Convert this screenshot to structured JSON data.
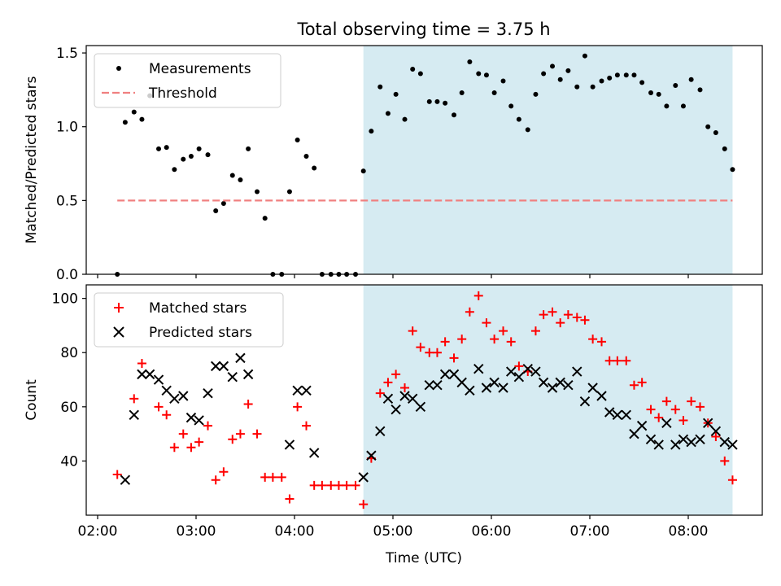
{
  "chart_data": {
    "title": "Total observing time = 3.75 h",
    "xlabel": "Time (UTC)",
    "x_tick_labels": [
      "02:00",
      "03:00",
      "04:00",
      "05:00",
      "06:00",
      "07:00",
      "08:00"
    ],
    "shaded_region": {
      "x0": 4.7,
      "x1": 8.45,
      "color": "#add8e6"
    },
    "panels": [
      {
        "type": "scatter",
        "ylabel": "Matched/Predicted stars",
        "ylim": [
          0,
          1.55
        ],
        "y_ticks": [
          0.0,
          0.5,
          1.0,
          1.5
        ],
        "y_tick_labels": [
          "0.0",
          "0.5",
          "1.0",
          "1.5"
        ],
        "legend": {
          "position": "top-left",
          "entries": [
            "Measurements",
            "Threshold"
          ]
        },
        "series": [
          {
            "name": "Measurements",
            "marker": "dot",
            "color": "#000000",
            "points": [
              [
                2.2,
                0.0
              ],
              [
                2.28,
                1.03
              ],
              [
                2.37,
                1.1
              ],
              [
                2.45,
                1.05
              ],
              [
                2.53,
                1.21
              ],
              [
                2.62,
                0.85
              ],
              [
                2.7,
                0.86
              ],
              [
                2.78,
                0.71
              ],
              [
                2.87,
                0.78
              ],
              [
                2.95,
                0.8
              ],
              [
                3.03,
                0.85
              ],
              [
                3.12,
                0.81
              ],
              [
                3.2,
                0.43
              ],
              [
                3.28,
                0.48
              ],
              [
                3.37,
                0.67
              ],
              [
                3.45,
                0.64
              ],
              [
                3.53,
                0.85
              ],
              [
                3.62,
                0.56
              ],
              [
                3.7,
                0.38
              ],
              [
                3.78,
                0.0
              ],
              [
                3.87,
                0.0
              ],
              [
                3.95,
                0.56
              ],
              [
                4.03,
                0.91
              ],
              [
                4.12,
                0.8
              ],
              [
                4.2,
                0.72
              ],
              [
                4.28,
                0.0
              ],
              [
                4.37,
                0.0
              ],
              [
                4.45,
                0.0
              ],
              [
                4.53,
                0.0
              ],
              [
                4.62,
                0.0
              ],
              [
                4.7,
                0.7
              ],
              [
                4.78,
                0.97
              ],
              [
                4.87,
                1.27
              ],
              [
                4.95,
                1.09
              ],
              [
                5.03,
                1.22
              ],
              [
                5.12,
                1.05
              ],
              [
                5.2,
                1.39
              ],
              [
                5.28,
                1.36
              ],
              [
                5.37,
                1.17
              ],
              [
                5.45,
                1.17
              ],
              [
                5.53,
                1.16
              ],
              [
                5.62,
                1.08
              ],
              [
                5.7,
                1.23
              ],
              [
                5.78,
                1.44
              ],
              [
                5.87,
                1.36
              ],
              [
                5.95,
                1.35
              ],
              [
                6.03,
                1.23
              ],
              [
                6.12,
                1.31
              ],
              [
                6.2,
                1.14
              ],
              [
                6.28,
                1.05
              ],
              [
                6.37,
                0.98
              ],
              [
                6.45,
                1.22
              ],
              [
                6.53,
                1.36
              ],
              [
                6.62,
                1.41
              ],
              [
                6.7,
                1.32
              ],
              [
                6.78,
                1.38
              ],
              [
                6.87,
                1.27
              ],
              [
                6.95,
                1.48
              ],
              [
                7.03,
                1.27
              ],
              [
                7.12,
                1.31
              ],
              [
                7.2,
                1.33
              ],
              [
                7.28,
                1.35
              ],
              [
                7.37,
                1.35
              ],
              [
                7.45,
                1.35
              ],
              [
                7.53,
                1.3
              ],
              [
                7.62,
                1.23
              ],
              [
                7.7,
                1.22
              ],
              [
                7.78,
                1.14
              ],
              [
                7.87,
                1.28
              ],
              [
                7.95,
                1.14
              ],
              [
                8.03,
                1.32
              ],
              [
                8.12,
                1.25
              ],
              [
                8.2,
                1.0
              ],
              [
                8.28,
                0.96
              ],
              [
                8.37,
                0.85
              ],
              [
                8.45,
                0.71
              ]
            ]
          },
          {
            "name": "Threshold",
            "type": "line",
            "style": "dashed",
            "color": "#f08080",
            "x": [
              2.2,
              8.45
            ],
            "y": [
              0.5,
              0.5
            ]
          }
        ]
      },
      {
        "type": "scatter",
        "ylabel": "Count",
        "ylim": [
          20,
          105
        ],
        "y_ticks": [
          40,
          60,
          80,
          100
        ],
        "y_tick_labels": [
          "40",
          "60",
          "80",
          "100"
        ],
        "legend": {
          "position": "top-left",
          "entries": [
            "Matched stars",
            "Predicted stars"
          ]
        },
        "series": [
          {
            "name": "Matched stars",
            "marker": "plus",
            "color": "#ff0000",
            "points": [
              [
                2.2,
                35
              ],
              [
                2.37,
                63
              ],
              [
                2.45,
                76
              ],
              [
                2.62,
                60
              ],
              [
                2.7,
                57
              ],
              [
                2.78,
                45
              ],
              [
                2.87,
                50
              ],
              [
                2.95,
                45
              ],
              [
                3.03,
                47
              ],
              [
                3.12,
                53
              ],
              [
                3.2,
                33
              ],
              [
                3.28,
                36
              ],
              [
                3.37,
                48
              ],
              [
                3.45,
                50
              ],
              [
                3.53,
                61
              ],
              [
                3.62,
                50
              ],
              [
                3.7,
                34
              ],
              [
                3.78,
                34
              ],
              [
                3.87,
                34
              ],
              [
                3.95,
                26
              ],
              [
                4.03,
                60
              ],
              [
                4.12,
                53
              ],
              [
                4.2,
                31
              ],
              [
                4.28,
                31
              ],
              [
                4.37,
                31
              ],
              [
                4.45,
                31
              ],
              [
                4.53,
                31
              ],
              [
                4.62,
                31
              ],
              [
                4.7,
                24
              ],
              [
                4.78,
                41
              ],
              [
                4.87,
                65
              ],
              [
                4.95,
                69
              ],
              [
                5.03,
                72
              ],
              [
                5.12,
                67
              ],
              [
                5.2,
                88
              ],
              [
                5.28,
                82
              ],
              [
                5.37,
                80
              ],
              [
                5.45,
                80
              ],
              [
                5.53,
                84
              ],
              [
                5.62,
                78
              ],
              [
                5.7,
                85
              ],
              [
                5.78,
                95
              ],
              [
                5.87,
                101
              ],
              [
                5.95,
                91
              ],
              [
                6.03,
                85
              ],
              [
                6.12,
                88
              ],
              [
                6.2,
                84
              ],
              [
                6.28,
                75
              ],
              [
                6.37,
                73
              ],
              [
                6.45,
                88
              ],
              [
                6.53,
                94
              ],
              [
                6.62,
                95
              ],
              [
                6.7,
                91
              ],
              [
                6.78,
                94
              ],
              [
                6.87,
                93
              ],
              [
                6.95,
                92
              ],
              [
                7.03,
                85
              ],
              [
                7.12,
                84
              ],
              [
                7.2,
                77
              ],
              [
                7.28,
                77
              ],
              [
                7.37,
                77
              ],
              [
                7.45,
                68
              ],
              [
                7.53,
                69
              ],
              [
                7.62,
                59
              ],
              [
                7.7,
                56
              ],
              [
                7.78,
                62
              ],
              [
                7.87,
                59
              ],
              [
                7.95,
                55
              ],
              [
                8.03,
                62
              ],
              [
                8.12,
                60
              ],
              [
                8.2,
                54
              ],
              [
                8.28,
                49
              ],
              [
                8.37,
                40
              ],
              [
                8.45,
                33
              ]
            ]
          },
          {
            "name": "Predicted stars",
            "marker": "x",
            "color": "#000000",
            "points": [
              [
                2.28,
                33
              ],
              [
                2.37,
                57
              ],
              [
                2.45,
                72
              ],
              [
                2.53,
                72
              ],
              [
                2.62,
                70
              ],
              [
                2.7,
                66
              ],
              [
                2.78,
                63
              ],
              [
                2.87,
                64
              ],
              [
                2.95,
                56
              ],
              [
                3.03,
                55
              ],
              [
                3.12,
                65
              ],
              [
                3.2,
                75
              ],
              [
                3.28,
                75
              ],
              [
                3.37,
                71
              ],
              [
                3.45,
                78
              ],
              [
                3.53,
                72
              ],
              [
                3.95,
                46
              ],
              [
                4.03,
                66
              ],
              [
                4.12,
                66
              ],
              [
                4.2,
                43
              ],
              [
                4.7,
                34
              ],
              [
                4.78,
                42
              ],
              [
                4.87,
                51
              ],
              [
                4.95,
                63
              ],
              [
                5.03,
                59
              ],
              [
                5.12,
                64
              ],
              [
                5.2,
                63
              ],
              [
                5.28,
                60
              ],
              [
                5.37,
                68
              ],
              [
                5.45,
                68
              ],
              [
                5.53,
                72
              ],
              [
                5.62,
                72
              ],
              [
                5.7,
                69
              ],
              [
                5.78,
                66
              ],
              [
                5.87,
                74
              ],
              [
                5.95,
                67
              ],
              [
                6.03,
                69
              ],
              [
                6.12,
                67
              ],
              [
                6.2,
                73
              ],
              [
                6.28,
                71
              ],
              [
                6.37,
                74
              ],
              [
                6.45,
                73
              ],
              [
                6.53,
                69
              ],
              [
                6.62,
                67
              ],
              [
                6.7,
                69
              ],
              [
                6.78,
                68
              ],
              [
                6.87,
                73
              ],
              [
                6.95,
                62
              ],
              [
                7.03,
                67
              ],
              [
                7.12,
                64
              ],
              [
                7.2,
                58
              ],
              [
                7.28,
                57
              ],
              [
                7.37,
                57
              ],
              [
                7.45,
                50
              ],
              [
                7.53,
                53
              ],
              [
                7.62,
                48
              ],
              [
                7.7,
                46
              ],
              [
                7.78,
                54
              ],
              [
                7.87,
                46
              ],
              [
                7.95,
                48
              ],
              [
                8.03,
                47
              ],
              [
                8.12,
                48
              ],
              [
                8.2,
                54
              ],
              [
                8.28,
                51
              ],
              [
                8.37,
                47
              ],
              [
                8.45,
                46
              ]
            ]
          }
        ]
      }
    ]
  }
}
